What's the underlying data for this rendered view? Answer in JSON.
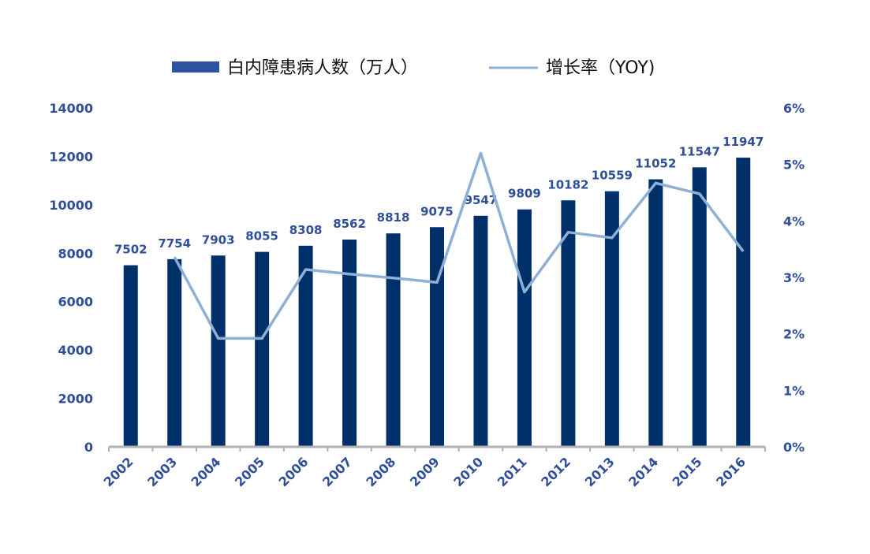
{
  "chart_data": {
    "type": "bar",
    "categories": [
      "2002",
      "2003",
      "2004",
      "2005",
      "2006",
      "2007",
      "2008",
      "2009",
      "2010",
      "2011",
      "2012",
      "2013",
      "2014",
      "2015",
      "2016"
    ],
    "series": [
      {
        "name": "白内障患病人数（万人）",
        "type": "bar",
        "axis": "left",
        "color": "#00306a",
        "values": [
          7502,
          7754,
          7903,
          8055,
          8308,
          8562,
          8818,
          9075,
          9547,
          9809,
          10182,
          10559,
          11052,
          11547,
          11947
        ]
      },
      {
        "name": "增长率（YOY)",
        "type": "line",
        "axis": "right",
        "color": "#8fb0d4",
        "values": [
          null,
          3.36,
          1.92,
          1.92,
          3.14,
          3.06,
          2.99,
          2.91,
          5.2,
          2.74,
          3.8,
          3.7,
          4.67,
          4.48,
          3.46
        ]
      }
    ],
    "data_labels": [
      "7502",
      "7754",
      "7903",
      "8055",
      "8308",
      "8562",
      "8818",
      "9075",
      "9547",
      "9809",
      "10182",
      "10559",
      "11052",
      "11547",
      "11947"
    ],
    "y_left": {
      "ticks": [
        "0",
        "2000",
        "4000",
        "6000",
        "8000",
        "10000",
        "12000",
        "14000"
      ],
      "ylim": [
        0,
        14000
      ]
    },
    "y_right": {
      "ticks": [
        "0%",
        "1%",
        "2%",
        "3%",
        "4%",
        "5%",
        "6%"
      ],
      "ylim": [
        0,
        6
      ]
    },
    "legend": {
      "position": "top",
      "bar_label": "白内障患病人数（万人）",
      "line_label": "增长率（YOY)"
    },
    "grid": false,
    "accent_color": "#2f4f9a"
  }
}
